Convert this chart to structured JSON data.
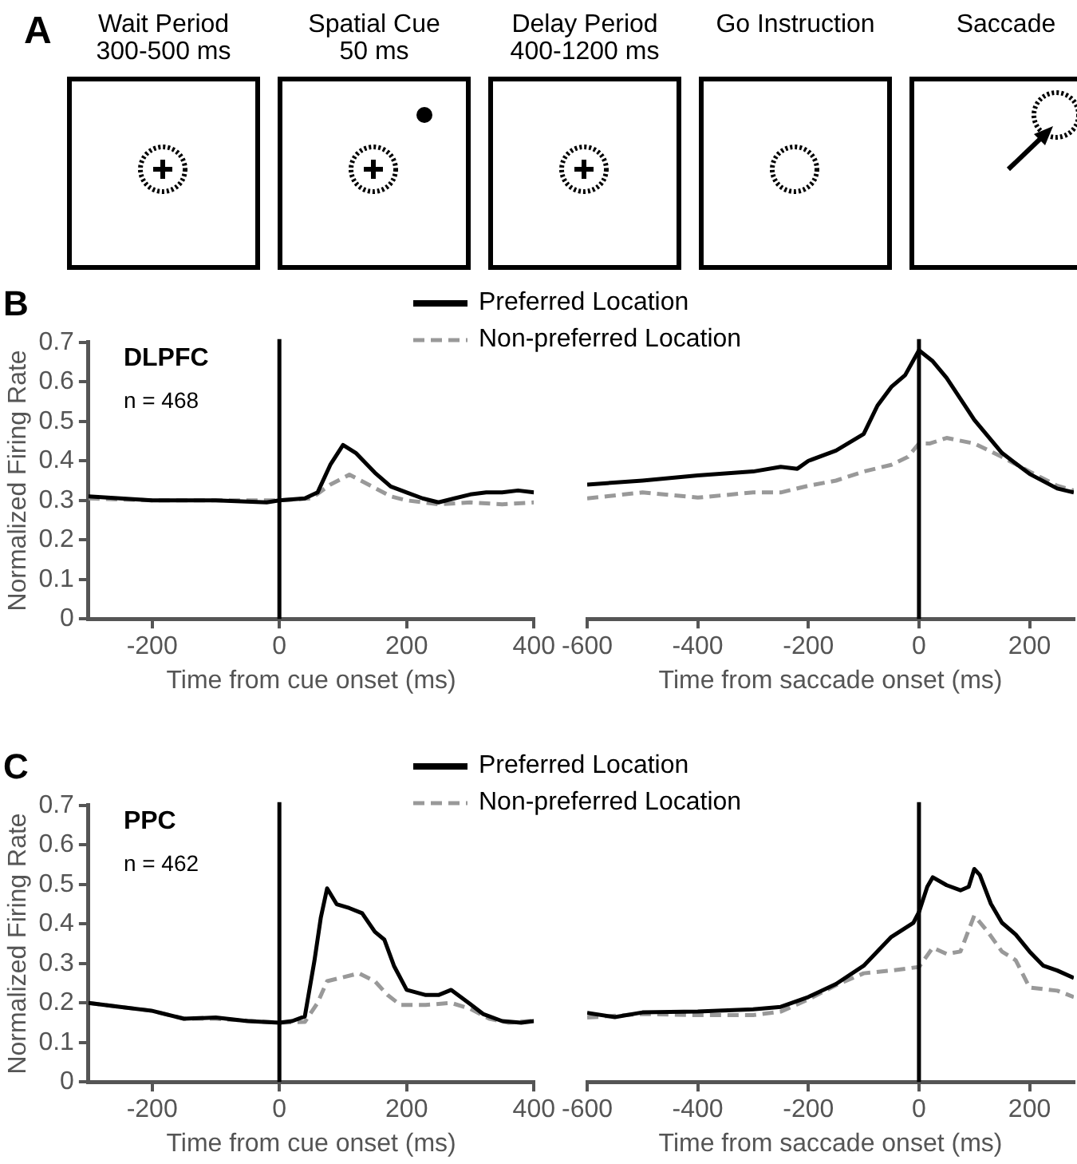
{
  "chart_data": [
    {
      "type": "other",
      "title": "A",
      "annotations": [
        "Wait Period\n300-500 ms",
        "Spatial Cue\n50 ms",
        "Delay Period\n400-1200 ms",
        "Go Instruction",
        "Saccade"
      ]
    },
    {
      "type": "line",
      "title": "B",
      "ylabel": "Normalized Firing Rate",
      "xlabel": "Time from cue onset (ms)",
      "annotations": [
        "DLPFC",
        "n = 468"
      ],
      "xlim": [
        -300,
        400
      ],
      "xticks": [
        -200,
        0,
        200,
        400
      ],
      "ylim": [
        0,
        0.7
      ],
      "yticks": [
        0,
        0.1,
        0.2,
        0.3,
        0.4,
        0.5,
        0.6,
        0.7
      ],
      "marker": "none",
      "legend": "top right",
      "ref_lines": [
        {
          "axis": "x",
          "value": 0
        }
      ],
      "series": [
        {
          "name": "Preferred Location",
          "color": "#000000",
          "line_style": "solid",
          "x": [
            -300,
            -250,
            -200,
            -100,
            -20,
            0,
            40,
            60,
            80,
            100,
            120,
            150,
            175,
            200,
            225,
            250,
            275,
            300,
            325,
            350,
            375,
            400
          ],
          "values": [
            0.31,
            0.305,
            0.3,
            0.3,
            0.295,
            0.3,
            0.305,
            0.32,
            0.39,
            0.44,
            0.42,
            0.37,
            0.335,
            0.32,
            0.305,
            0.295,
            0.305,
            0.315,
            0.32,
            0.32,
            0.325,
            0.32
          ]
        },
        {
          "name": "Non-preferred Location",
          "color": "#999999",
          "line_style": "dashed",
          "x": [
            -300,
            -200,
            -100,
            0,
            50,
            80,
            110,
            140,
            175,
            200,
            250,
            300,
            350,
            400
          ],
          "values": [
            0.305,
            0.3,
            0.3,
            0.3,
            0.305,
            0.34,
            0.365,
            0.34,
            0.31,
            0.3,
            0.29,
            0.295,
            0.29,
            0.295
          ]
        }
      ]
    },
    {
      "type": "line",
      "xlabel": "Time from saccade onset (ms)",
      "xlim": [
        -600,
        280
      ],
      "xticks": [
        -600,
        -400,
        -200,
        0,
        200
      ],
      "ylim": [
        0,
        0.7
      ],
      "yticks": [
        0,
        0.1,
        0.2,
        0.3,
        0.4,
        0.5,
        0.6,
        0.7
      ],
      "tick_labels": "x",
      "marker": "none",
      "ref_lines": [
        {
          "axis": "x",
          "value": 0
        }
      ],
      "series": [
        {
          "color": "#000000",
          "line_style": "solid",
          "x": [
            -600,
            -500,
            -400,
            -300,
            -250,
            -220,
            -200,
            -150,
            -100,
            -75,
            -50,
            -25,
            0,
            25,
            50,
            100,
            150,
            200,
            250,
            280
          ],
          "values": [
            0.34,
            0.35,
            0.363,
            0.373,
            0.385,
            0.38,
            0.4,
            0.426,
            0.468,
            0.54,
            0.587,
            0.617,
            0.68,
            0.652,
            0.61,
            0.504,
            0.42,
            0.367,
            0.33,
            0.32
          ]
        },
        {
          "color": "#999999",
          "line_style": "dashed",
          "x": [
            -600,
            -500,
            -400,
            -300,
            -250,
            -200,
            -150,
            -100,
            -50,
            -20,
            0,
            20,
            50,
            100,
            150,
            200,
            250,
            280
          ],
          "values": [
            0.305,
            0.32,
            0.307,
            0.32,
            0.32,
            0.337,
            0.35,
            0.373,
            0.39,
            0.41,
            0.444,
            0.444,
            0.458,
            0.444,
            0.41,
            0.373,
            0.337,
            0.325
          ]
        }
      ]
    },
    {
      "type": "line",
      "title": "C",
      "ylabel": "Normalized Firing Rate",
      "xlabel": "Time from cue onset (ms)",
      "annotations": [
        "PPC",
        "n = 462"
      ],
      "xlim": [
        -300,
        400
      ],
      "xticks": [
        -200,
        0,
        200,
        400
      ],
      "ylim": [
        0,
        0.7
      ],
      "yticks": [
        0,
        0.1,
        0.2,
        0.3,
        0.4,
        0.5,
        0.6,
        0.7
      ],
      "marker": "none",
      "legend": "top right",
      "ref_lines": [
        {
          "axis": "x",
          "value": 0
        }
      ],
      "series": [
        {
          "name": "Preferred Location",
          "color": "#000000",
          "line_style": "solid",
          "x": [
            -300,
            -250,
            -200,
            -150,
            -100,
            -50,
            0,
            20,
            40,
            55,
            65,
            75,
            90,
            110,
            130,
            150,
            165,
            180,
            200,
            230,
            250,
            270,
            300,
            320,
            350,
            380,
            400
          ],
          "values": [
            0.2,
            0.19,
            0.18,
            0.16,
            0.163,
            0.154,
            0.15,
            0.154,
            0.166,
            0.306,
            0.415,
            0.49,
            0.45,
            0.44,
            0.427,
            0.38,
            0.36,
            0.294,
            0.233,
            0.22,
            0.22,
            0.233,
            0.197,
            0.172,
            0.154,
            0.15,
            0.154
          ]
        },
        {
          "name": "Non-preferred Location",
          "color": "#999999",
          "line_style": "dashed",
          "x": [
            -300,
            -250,
            -200,
            -150,
            -100,
            -50,
            0,
            40,
            60,
            75,
            100,
            125,
            150,
            170,
            190,
            230,
            270,
            300,
            330,
            360,
            400
          ],
          "values": [
            0.2,
            0.19,
            0.18,
            0.16,
            0.16,
            0.155,
            0.15,
            0.152,
            0.2,
            0.255,
            0.265,
            0.275,
            0.255,
            0.22,
            0.195,
            0.195,
            0.2,
            0.185,
            0.16,
            0.15,
            0.155
          ]
        }
      ]
    },
    {
      "type": "line",
      "xlabel": "Time from saccade onset (ms)",
      "xlim": [
        -600,
        280
      ],
      "xticks": [
        -600,
        -400,
        -200,
        0,
        200
      ],
      "ylim": [
        0,
        0.7
      ],
      "yticks": [
        0,
        0.1,
        0.2,
        0.3,
        0.4,
        0.5,
        0.6,
        0.7
      ],
      "tick_labels": "x",
      "marker": "none",
      "ref_lines": [
        {
          "axis": "x",
          "value": 0
        }
      ],
      "series": [
        {
          "color": "#000000",
          "line_style": "solid",
          "x": [
            -600,
            -550,
            -500,
            -400,
            -300,
            -250,
            -200,
            -150,
            -100,
            -50,
            -10,
            0,
            15,
            25,
            50,
            75,
            90,
            100,
            110,
            130,
            150,
            175,
            200,
            225,
            250,
            280
          ],
          "values": [
            0.175,
            0.164,
            0.176,
            0.178,
            0.184,
            0.19,
            0.215,
            0.248,
            0.294,
            0.367,
            0.403,
            0.43,
            0.494,
            0.518,
            0.498,
            0.485,
            0.494,
            0.539,
            0.524,
            0.451,
            0.403,
            0.373,
            0.33,
            0.294,
            0.282,
            0.263
          ]
        },
        {
          "color": "#999999",
          "line_style": "dashed",
          "x": [
            -600,
            -500,
            -400,
            -300,
            -250,
            -200,
            -150,
            -100,
            -50,
            0,
            25,
            50,
            75,
            100,
            125,
            150,
            175,
            200,
            250,
            280
          ],
          "values": [
            0.163,
            0.172,
            0.169,
            0.169,
            0.178,
            0.209,
            0.245,
            0.275,
            0.282,
            0.291,
            0.34,
            0.324,
            0.33,
            0.421,
            0.379,
            0.33,
            0.308,
            0.239,
            0.231,
            0.215
          ]
        }
      ]
    }
  ]
}
